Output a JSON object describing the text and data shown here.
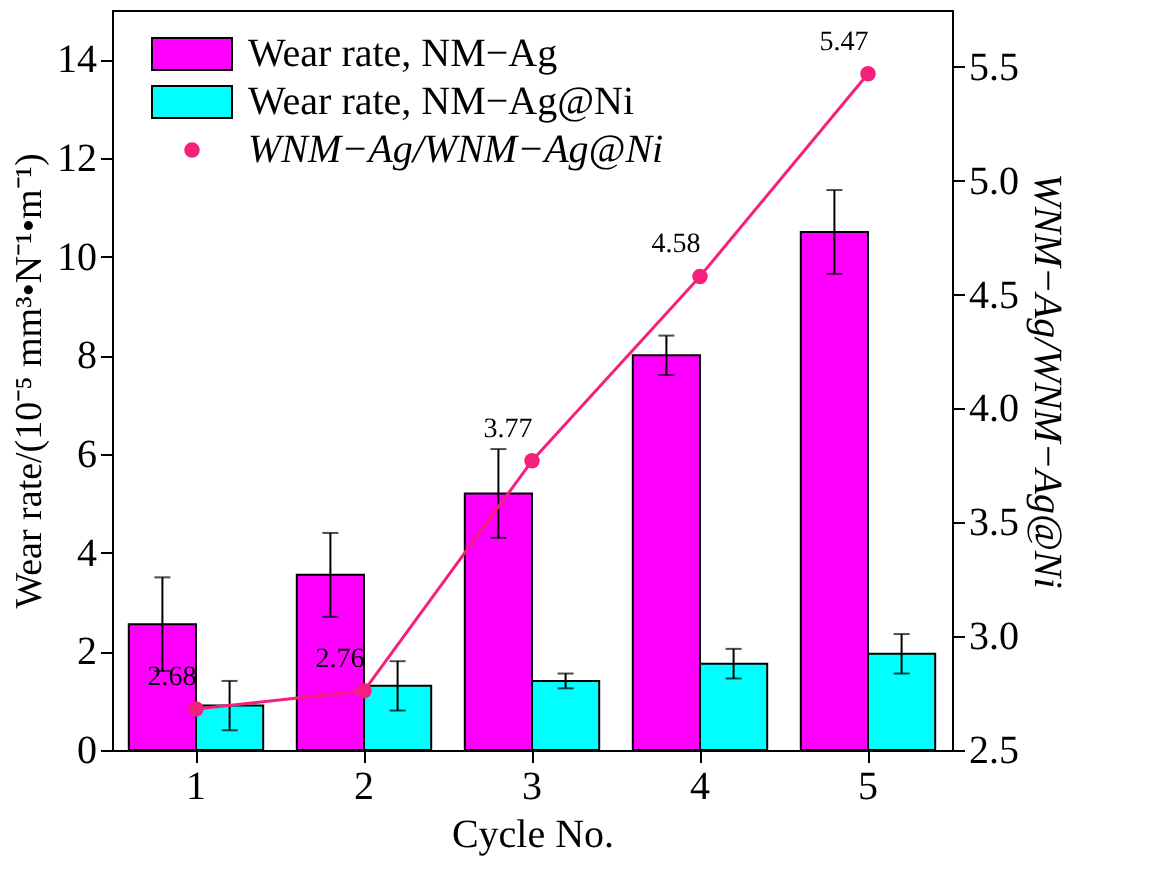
{
  "chart_data": {
    "type": "bar",
    "xlabel": "Cycle No.",
    "ylabel": "Wear rate/(10⁻⁵ mm³•N⁻¹•m⁻¹)",
    "y2label": "WNM−Ag/WNM−Ag@Ni",
    "categories": [
      "1",
      "2",
      "3",
      "4",
      "5"
    ],
    "series": [
      {
        "name": "Wear rate, NM−Ag",
        "color": "#ff00ff",
        "values": [
          2.55,
          3.55,
          5.2,
          8.0,
          10.5
        ],
        "errors": [
          0.95,
          0.85,
          0.9,
          0.4,
          0.85
        ]
      },
      {
        "name": "Wear rate, NM−Ag@Ni",
        "color": "#00ffff",
        "values": [
          0.9,
          1.3,
          1.4,
          1.75,
          1.95
        ],
        "errors": [
          0.5,
          0.5,
          0.15,
          0.3,
          0.4
        ]
      },
      {
        "name": "WNM−Ag/WNM−Ag@Ni",
        "type": "line",
        "line_style": "solid",
        "axis": "y2",
        "color": "#f5207d",
        "marker": "circle",
        "values": [
          2.68,
          2.76,
          3.77,
          4.58,
          5.47
        ],
        "value_labels": [
          "2.68",
          "2.76",
          "3.77",
          "4.58",
          "5.47"
        ]
      }
    ],
    "ylim": [
      0,
      15
    ],
    "yticks": [
      0,
      2,
      4,
      6,
      8,
      10,
      12,
      14
    ],
    "y2lim": [
      2.5,
      5.75
    ],
    "y2ticks": [
      2.5,
      {
        "value": 3,
        "label": "3.0"
      },
      3.5,
      {
        "value": 4,
        "label": "4.0"
      },
      4.5,
      {
        "value": 5,
        "label": "5.0"
      },
      5.5
    ],
    "legend": "top left",
    "grid": false
  }
}
